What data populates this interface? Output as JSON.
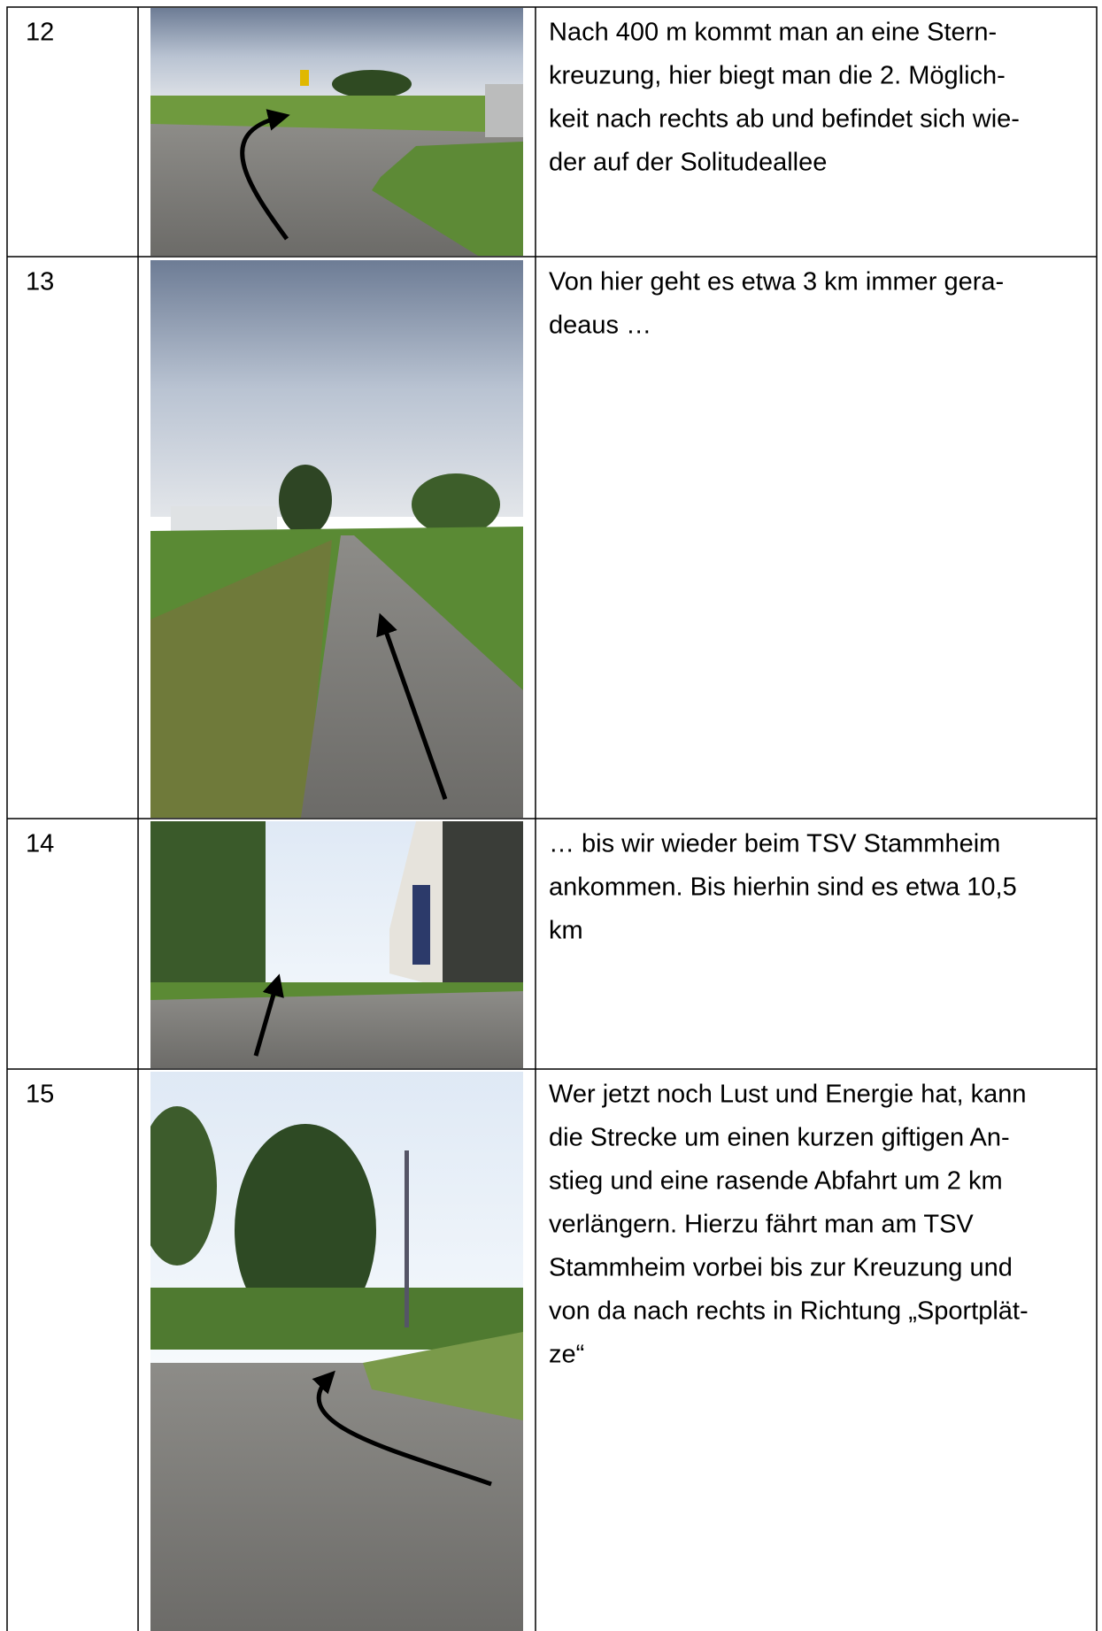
{
  "rows": [
    {
      "number": "12",
      "lines": [
        "Nach 400 m kommt man an eine Stern-",
        "kreuzung, hier biegt man die 2. Möglich-",
        "keit nach rechts ab und befindet sich wie-",
        "der auf der Solitudeallee"
      ]
    },
    {
      "number": "13",
      "lines": [
        "Von hier geht es etwa 3 km immer gera-",
        "deaus …"
      ]
    },
    {
      "number": "14",
      "lines": [
        "… bis wir wieder beim TSV Stammheim",
        "ankommen. Bis hierhin sind es etwa 10,5",
        "km"
      ]
    },
    {
      "number": "15",
      "lines": [
        "Wer jetzt noch Lust und Energie hat, kann",
        "die Strecke um einen kurzen giftigen An-",
        "stieg und eine rasende Abfahrt um 2 km",
        "verlängern. Hierzu fährt man am TSV",
        "Stammheim vorbei bis zur Kreuzung und",
        "von da nach rechts in Richtung „Sportplät-",
        "ze“"
      ]
    }
  ]
}
